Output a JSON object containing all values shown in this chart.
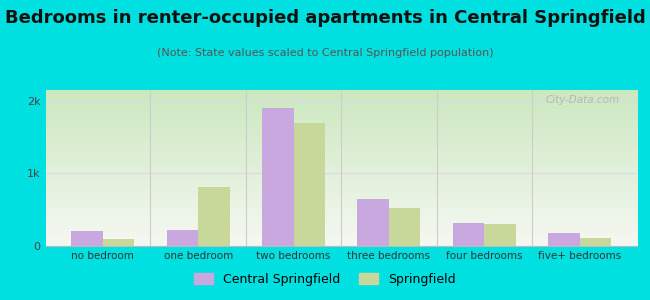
{
  "title": "Bedrooms in renter-occupied apartments in Central Springfield",
  "subtitle": "(Note: State values scaled to Central Springfield population)",
  "categories": [
    "no bedroom",
    "one bedroom",
    "two bedrooms",
    "three bedrooms",
    "four bedrooms",
    "five+ bedrooms"
  ],
  "central_springfield": [
    200,
    220,
    1900,
    650,
    320,
    185
  ],
  "springfield": [
    95,
    820,
    1700,
    530,
    300,
    110
  ],
  "cs_color": "#c9a8e0",
  "sp_color": "#c8d89a",
  "background_color": "#00e0e0",
  "grad_top": "#cce8c0",
  "grad_bottom": "#f5f8f2",
  "yticks": [
    0,
    1000,
    2000
  ],
  "ytick_labels": [
    "0",
    "1k",
    "2k"
  ],
  "ylim": [
    0,
    2150
  ],
  "grid_color": "#ddd8e8",
  "title_fontsize": 13,
  "subtitle_fontsize": 8,
  "legend_label_cs": "Central Springfield",
  "legend_label_sp": "Springfield",
  "watermark": "City-Data.com"
}
